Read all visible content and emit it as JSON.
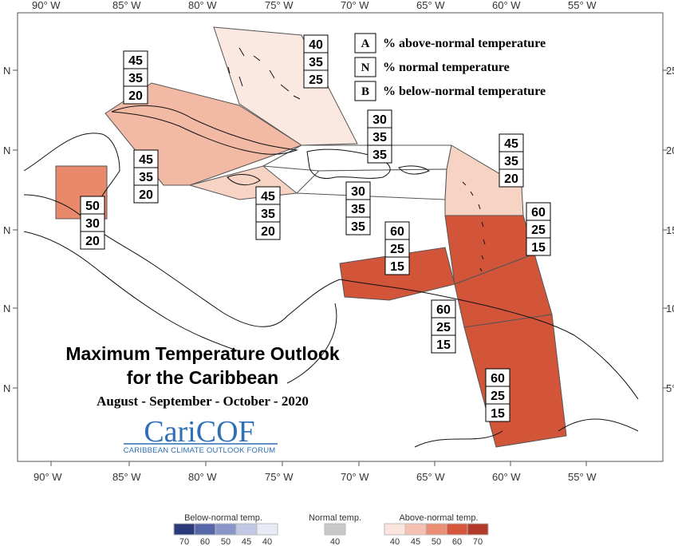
{
  "title": "Maximum Temperature Outlook",
  "title_line2": "for the Caribbean",
  "subtitle": "August - September - October - 2020",
  "logo": {
    "main": "CariCOF",
    "sub": "CARIBBEAN CLIMATE OUTLOOK FORUM"
  },
  "axes": {
    "lon_labels": [
      "90° W",
      "85° W",
      "80° W",
      "75° W",
      "70° W",
      "65° W",
      "60° W",
      "55° W"
    ],
    "lat_labels_left": [
      "N",
      "N",
      "N",
      "N",
      "N"
    ],
    "lat_labels_right": [
      "25°",
      "20°",
      "15°",
      "10°",
      "5°"
    ]
  },
  "key": [
    {
      "letter": "A",
      "text": "% above-normal temperature"
    },
    {
      "letter": "N",
      "text": "% normal temperature"
    },
    {
      "letter": "B",
      "text": "% below-normal temperature"
    }
  ],
  "regions": [
    {
      "name": "bahamas",
      "A": "40",
      "N": "35",
      "B": "25",
      "color": "#fbe8e0"
    },
    {
      "name": "cuba",
      "A": "45",
      "N": "35",
      "B": "20",
      "color": "#f2b9a4"
    },
    {
      "name": "cayman-jamaica",
      "A": "45",
      "N": "35",
      "B": "20",
      "color": "#f7d3c4"
    },
    {
      "name": "belize",
      "A": "50",
      "N": "30",
      "B": "20",
      "color": "#e8896c"
    },
    {
      "name": "jamaica-label",
      "A": "45",
      "N": "35",
      "B": "20",
      "color": "#f7d3c4"
    },
    {
      "name": "hispaniola-north",
      "A": "30",
      "N": "35",
      "B": "35",
      "color": "#ffffff"
    },
    {
      "name": "hispaniola-south",
      "A": "30",
      "N": "35",
      "B": "35",
      "color": "#ffffff"
    },
    {
      "name": "leeward",
      "A": "45",
      "N": "35",
      "B": "20",
      "color": "#f7d3c4"
    },
    {
      "name": "windward",
      "A": "60",
      "N": "25",
      "B": "15",
      "color": "#d2553a"
    },
    {
      "name": "abc-islands",
      "A": "60",
      "N": "25",
      "B": "15",
      "color": "#d2553a"
    },
    {
      "name": "trinidad",
      "A": "60",
      "N": "25",
      "B": "15",
      "color": "#d2553a"
    },
    {
      "name": "guianas",
      "A": "60",
      "N": "25",
      "B": "15",
      "color": "#d2553a"
    }
  ],
  "legend": {
    "below": {
      "title": "Below-normal temp.",
      "ticks": [
        "70",
        "60",
        "50",
        "45",
        "40"
      ],
      "colors": [
        "#2b3a7a",
        "#5566aa",
        "#8a96c8",
        "#c1c8e4",
        "#e9ecf6"
      ]
    },
    "normal": {
      "title": "Normal temp.",
      "ticks": [
        "40"
      ],
      "colors": [
        "#c8c8c8"
      ]
    },
    "above": {
      "title": "Above-normal temp.",
      "ticks": [
        "40",
        "45",
        "50",
        "60",
        "70"
      ],
      "colors": [
        "#fbe4dc",
        "#f5c2b1",
        "#ea8e74",
        "#d5573c",
        "#b23a28"
      ]
    }
  }
}
